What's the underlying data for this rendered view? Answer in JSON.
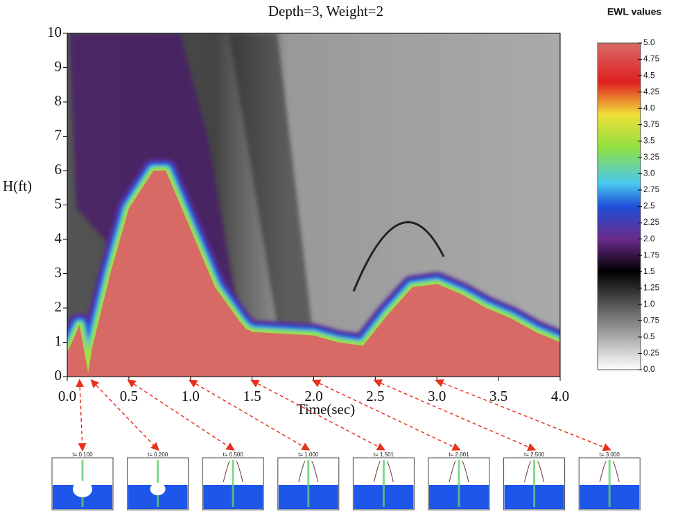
{
  "chart_data": {
    "type": "heatmap",
    "title": "Depth=3, Weight=2",
    "x_label": "Time(sec)",
    "y_label": "H(ft)",
    "xlim": [
      0,
      4
    ],
    "ylim": [
      0,
      10
    ],
    "xticks": [
      {
        "value": 0,
        "label": "0.0"
      },
      0.5,
      {
        "value": 1,
        "label": "1.0"
      },
      1.5,
      {
        "value": 2,
        "label": "2.0"
      },
      2.5,
      {
        "value": 3,
        "label": "3.0"
      },
      3.5,
      {
        "value": 4,
        "label": "4.0"
      }
    ],
    "yticks": [
      0,
      1,
      2,
      3,
      4,
      5,
      6,
      7,
      8,
      9,
      10
    ],
    "x": [
      0,
      0.1,
      0.17,
      0.2,
      0.35,
      0.5,
      0.7,
      0.8,
      1.0,
      1.2,
      1.4,
      1.45,
      1.5,
      2.0,
      2.2,
      2.4,
      2.6,
      2.8,
      3.0,
      3.2,
      3.4,
      3.6,
      3.8,
      4.0
    ],
    "values": [
      0.7,
      1.5,
      0.1,
      0.8,
      3,
      4.9,
      6.0,
      6.0,
      4.3,
      2.6,
      1.6,
      1.4,
      1.3,
      1.2,
      1.0,
      0.9,
      1.8,
      2.6,
      2.7,
      2.4,
      2.0,
      1.7,
      1.3,
      1.0
    ],
    "color": "#d86a66",
    "colorbar_title": "EWL values",
    "colorbar_lim": [
      0,
      5
    ],
    "colorbar_ticks": [
      {
        "value": 5,
        "label": "5.0"
      },
      4.75,
      4.5,
      4.25,
      {
        "value": 4,
        "label": "4.0"
      },
      3.75,
      3.5,
      3.25,
      {
        "value": 3,
        "label": "3.0"
      },
      2.75,
      2.5,
      2.25,
      {
        "value": 2,
        "label": "2.0"
      },
      1.75,
      1.5,
      1.25,
      {
        "value": 1,
        "label": "1.0"
      },
      0.75,
      0.5,
      0.25,
      {
        "value": 0,
        "label": "0.0"
      }
    ],
    "snapshots": [
      {
        "time": 0.1,
        "label": "t= 0.100"
      },
      {
        "time": 0.2,
        "label": "t= 0.200"
      },
      {
        "time": 0.5,
        "label": "t= 0.500"
      },
      {
        "time": 1.0,
        "label": "t= 1.000"
      },
      {
        "time": 1.501,
        "label": "t= 1.501"
      },
      {
        "time": 2.001,
        "label": "t= 2.001"
      },
      {
        "time": 2.5,
        "label": "t= 2.500"
      },
      {
        "time": 3.0,
        "label": "t= 3.000"
      }
    ]
  }
}
